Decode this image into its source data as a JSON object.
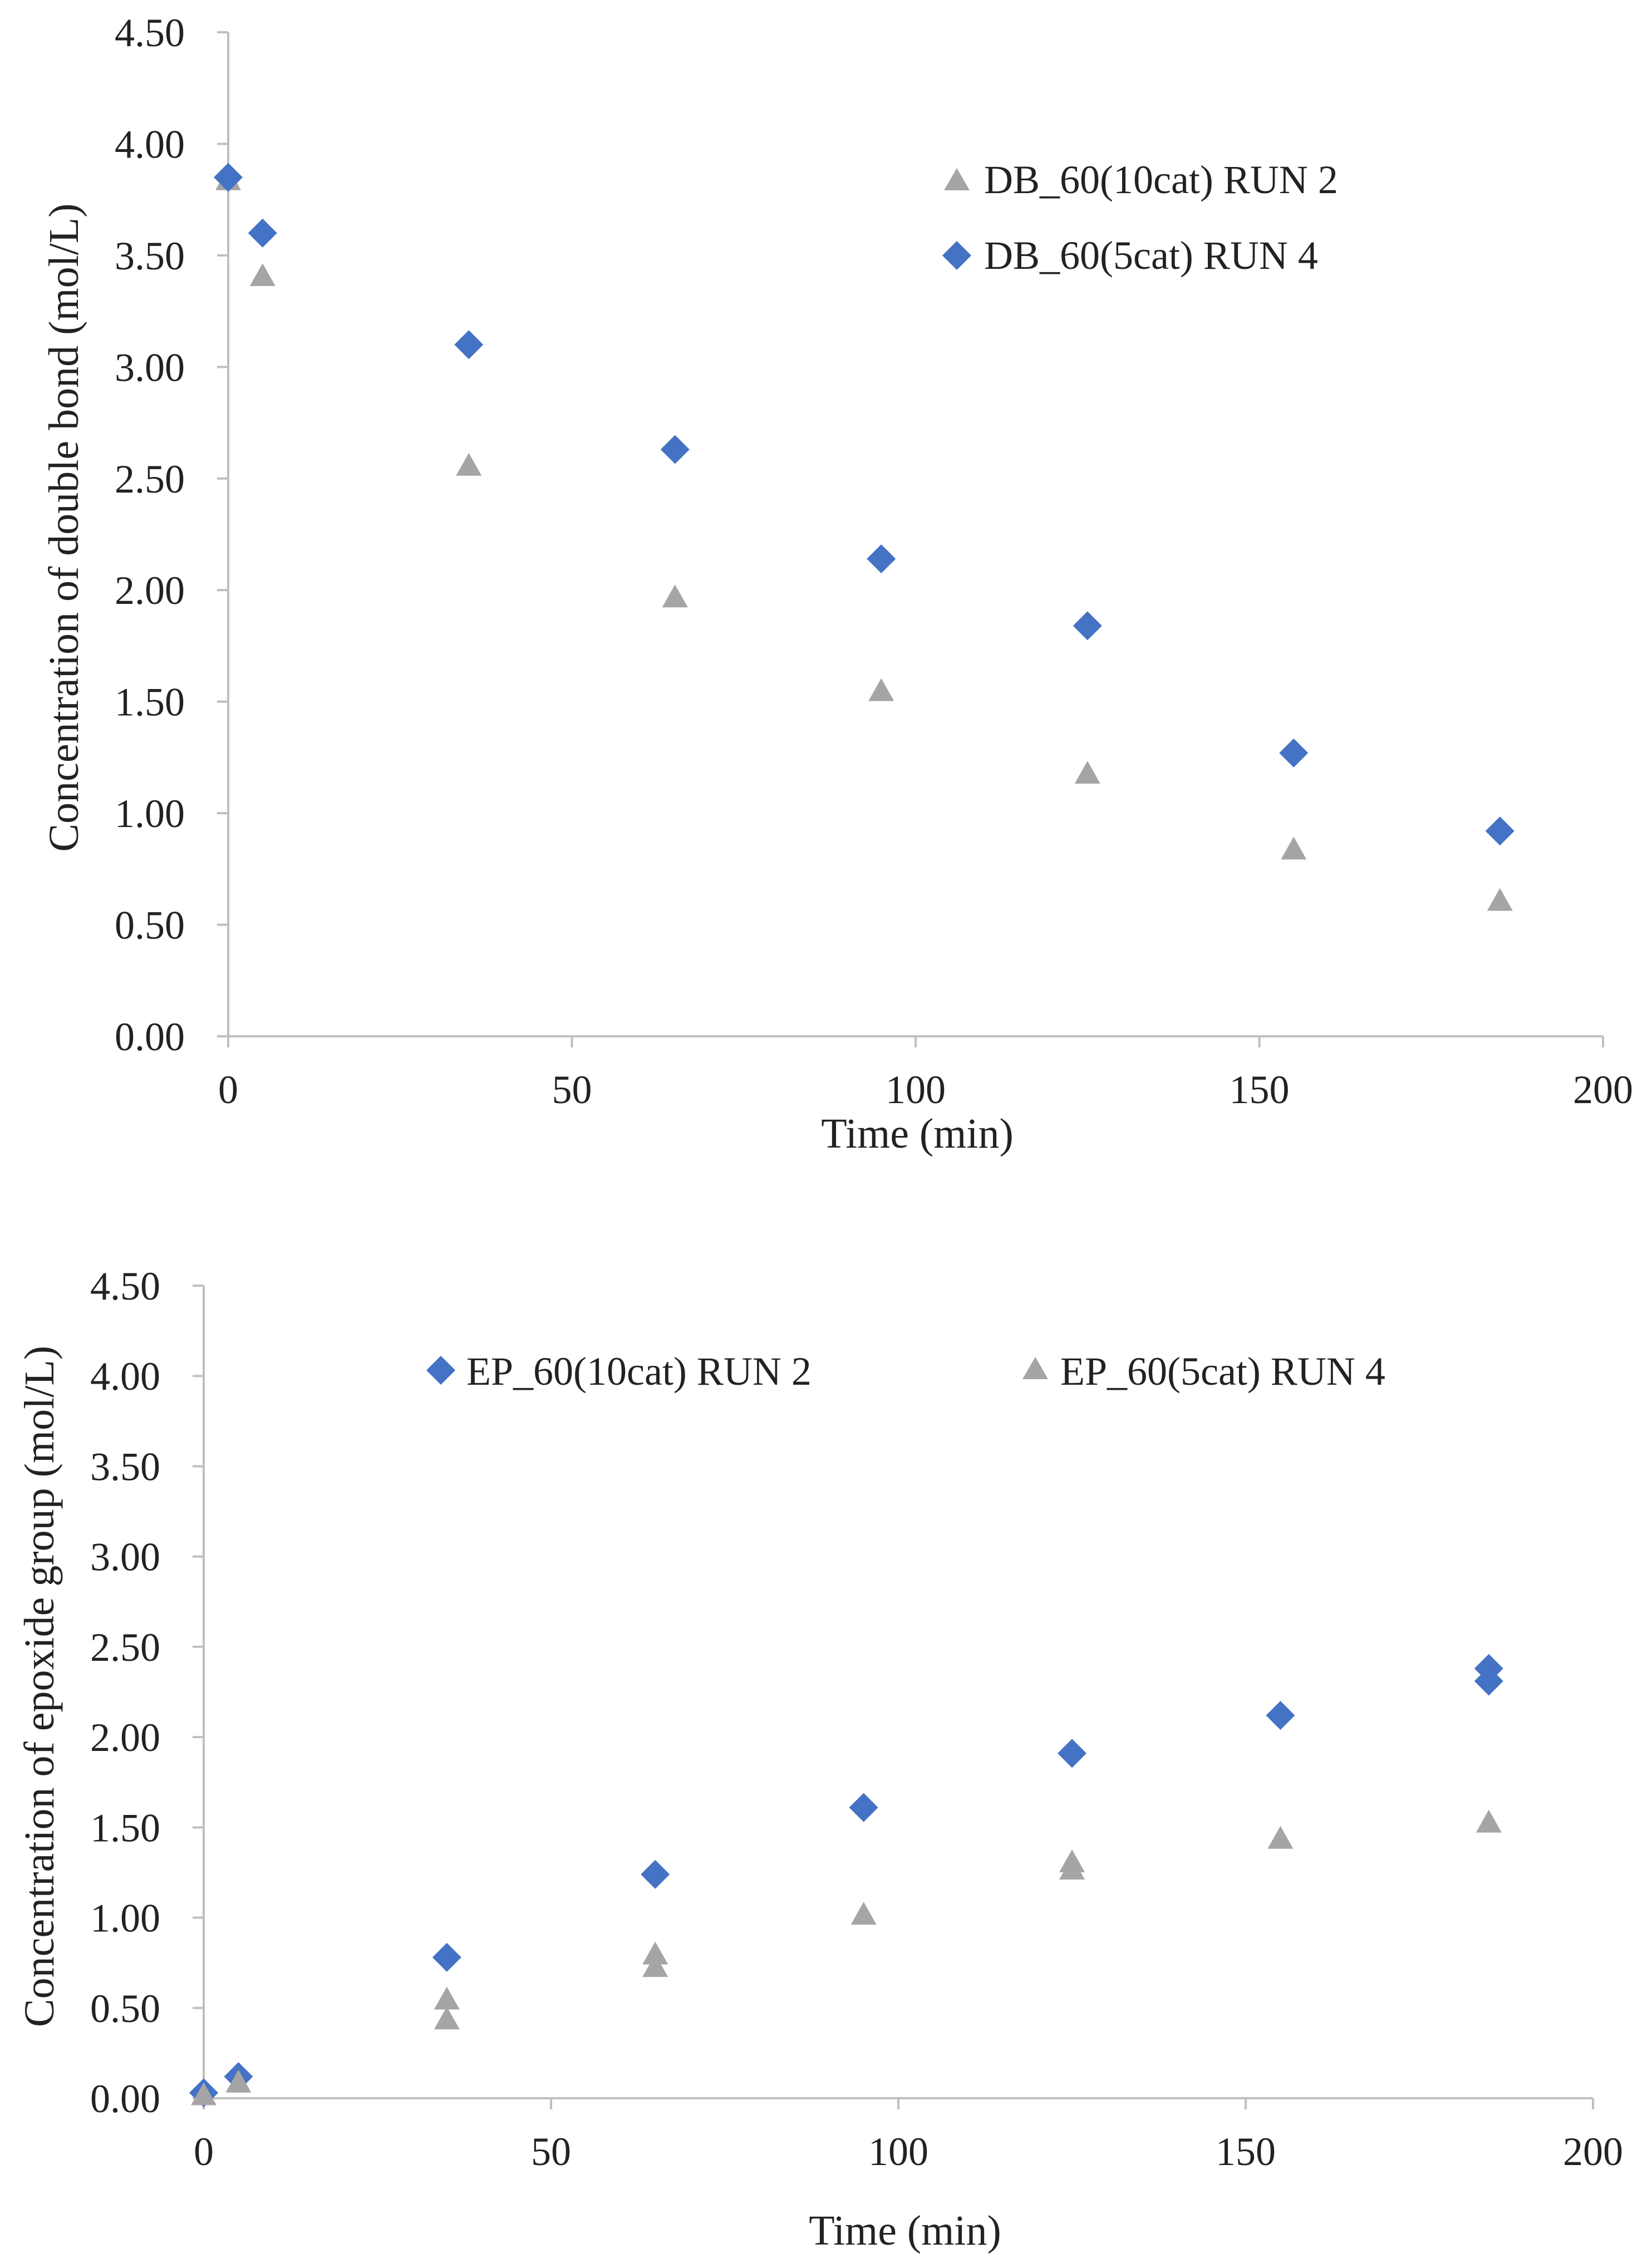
{
  "chart_data": [
    {
      "type": "scatter",
      "xlabel": "Time (min)",
      "ylabel": "Concentration of double bond (mol/L)",
      "xlim": [
        0,
        200
      ],
      "ylim": [
        0,
        4.5
      ],
      "x_ticks": [
        "0",
        "50",
        "100",
        "150",
        "200"
      ],
      "y_ticks": [
        "0.00",
        "0.50",
        "1.00",
        "1.50",
        "2.00",
        "2.50",
        "3.00",
        "3.50",
        "4.00",
        "4.50"
      ],
      "legend_position": "top-right",
      "series": [
        {
          "name": "DB_60(10cat) RUN 2",
          "marker": "triangle",
          "color": "#a5a5a5",
          "points": [
            [
              0,
              3.84
            ],
            [
              5,
              3.41
            ],
            [
              35,
              2.56
            ],
            [
              65,
              1.97
            ],
            [
              95,
              1.55
            ],
            [
              125,
              1.18
            ],
            [
              155,
              0.84
            ],
            [
              185,
              0.61
            ]
          ]
        },
        {
          "name": "DB_60(5cat) RUN 4",
          "marker": "diamond",
          "color": "#4472c4",
          "points": [
            [
              0,
              3.85
            ],
            [
              5,
              3.6
            ],
            [
              35,
              3.1
            ],
            [
              65,
              2.63
            ],
            [
              95,
              2.14
            ],
            [
              125,
              1.84
            ],
            [
              155,
              1.27
            ],
            [
              185,
              0.92
            ]
          ]
        }
      ]
    },
    {
      "type": "scatter",
      "xlabel": "Time (min)",
      "ylabel": "Concentration of epoxide group (mol/L)",
      "xlim": [
        0,
        200
      ],
      "ylim": [
        0,
        4.5
      ],
      "x_ticks": [
        "0",
        "50",
        "100",
        "150",
        "200"
      ],
      "y_ticks": [
        "0.00",
        "0.50",
        "1.00",
        "1.50",
        "2.00",
        "2.50",
        "3.00",
        "3.50",
        "4.00",
        "4.50"
      ],
      "legend_position": "top",
      "series": [
        {
          "name": "EP_60(10cat) RUN 2",
          "marker": "diamond",
          "color": "#4472c4",
          "points": [
            [
              0,
              0.03
            ],
            [
              5,
              0.12
            ],
            [
              35,
              0.78
            ],
            [
              65,
              1.24
            ],
            [
              95,
              1.61
            ],
            [
              125,
              1.91
            ],
            [
              155,
              2.12
            ],
            [
              185,
              2.38
            ],
            [
              185,
              2.31
            ]
          ]
        },
        {
          "name": "EP_60(5cat) RUN 4",
          "marker": "triangle",
          "color": "#a5a5a5",
          "points": [
            [
              0,
              0.02
            ],
            [
              5,
              0.09
            ],
            [
              35,
              0.44
            ],
            [
              35,
              0.55
            ],
            [
              65,
              0.73
            ],
            [
              65,
              0.8
            ],
            [
              95,
              1.02
            ],
            [
              125,
              1.27
            ],
            [
              125,
              1.31
            ],
            [
              155,
              1.44
            ],
            [
              185,
              1.53
            ]
          ]
        }
      ]
    }
  ]
}
